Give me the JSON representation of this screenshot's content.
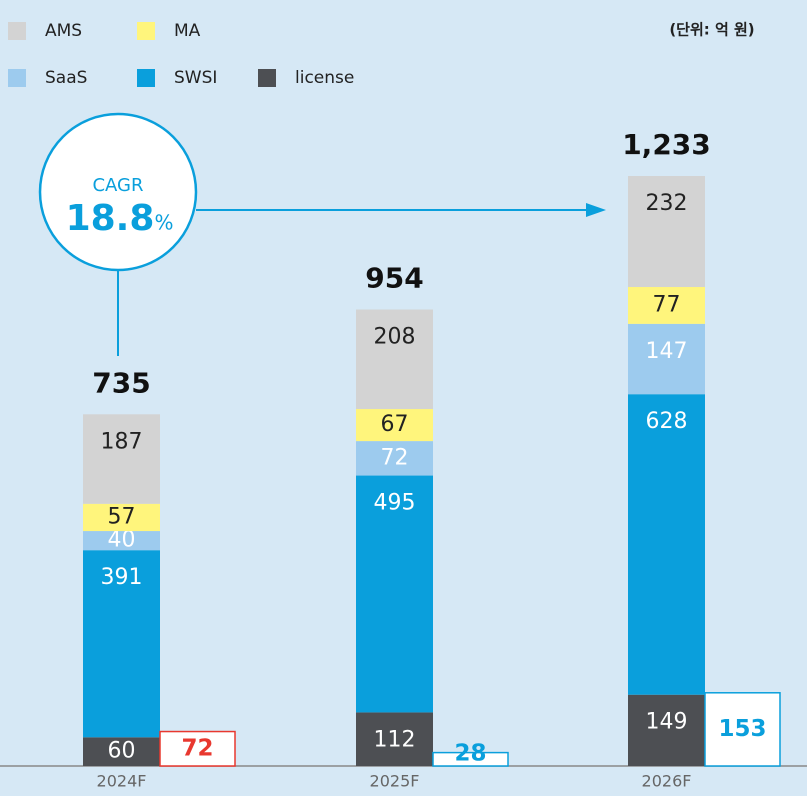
{
  "chart_data": {
    "type": "stacked-bar",
    "unit_note": "(단위: 억 원)",
    "categories": [
      "2024F",
      "2025F",
      "2026F"
    ],
    "series": [
      {
        "name": "license",
        "color": "#4d4f53",
        "label_color": "#ffffff",
        "values": [
          60,
          112,
          149
        ]
      },
      {
        "name": "SWSI",
        "color": "#0a9fdc",
        "label_color": "#ffffff",
        "values": [
          391,
          495,
          628
        ]
      },
      {
        "name": "SaaS",
        "color": "#9dcbee",
        "label_color": "#ffffff",
        "values": [
          40,
          72,
          147
        ]
      },
      {
        "name": "MA",
        "color": "#fff57c",
        "label_color": "#222222",
        "values": [
          57,
          67,
          77
        ]
      },
      {
        "name": "AMS",
        "color": "#d3d3d3",
        "label_color": "#222222",
        "values": [
          187,
          208,
          232
        ]
      }
    ],
    "totals": [
      735,
      954,
      1233
    ],
    "total_labels": [
      "735",
      "954",
      "1,233"
    ],
    "side_values": [
      72,
      28,
      153
    ],
    "side_colors": [
      "#e8382f",
      "#0a9fdc",
      "#0a9fdc"
    ],
    "cagr": {
      "label": "CAGR",
      "value": 18.8,
      "unit": "%"
    }
  }
}
